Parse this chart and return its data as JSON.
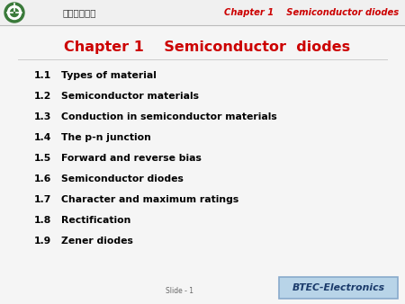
{
  "title_main": "Chapter 1    Semiconductor  diodes",
  "header_text": "Chapter 1    Semiconductor diodes",
  "header_color": "#CC0000",
  "title_color": "#CC0000",
  "items": [
    [
      "1.1",
      "Types of material"
    ],
    [
      "1.2",
      "Semiconductor materials"
    ],
    [
      "1.3",
      "Conduction in semiconductor materials"
    ],
    [
      "1.4",
      "The p-n junction"
    ],
    [
      "1.5",
      "Forward and reverse bias"
    ],
    [
      "1.6",
      "Semiconductor diodes"
    ],
    [
      "1.7",
      "Character and maximum ratings"
    ],
    [
      "1.8",
      "Rectification"
    ],
    [
      "1.9",
      "Zener diodes"
    ]
  ],
  "item_color": "#000000",
  "bg_color": "#f5f5f5",
  "header_bg_color": "#f0f0f0",
  "btec_box_color": "#b8d4e8",
  "btec_box_edge": "#88aacc",
  "btec_text": "BTEC-Electronics",
  "btec_text_color": "#1a3a6a",
  "slide_label": "Slide - 1",
  "chinese_text": "广东教育学院",
  "logo_green": "#3a8a3a",
  "logo_light_green": "#5aaa3a"
}
